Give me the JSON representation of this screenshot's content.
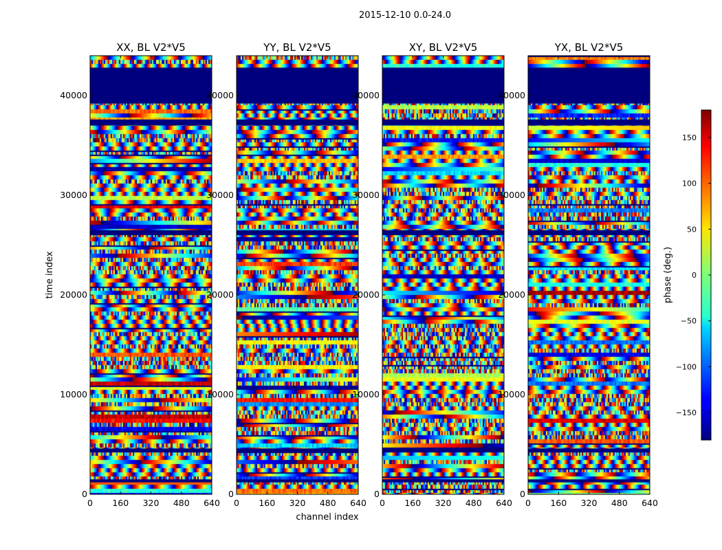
{
  "chart_data": {
    "type": "heatmap",
    "suptitle": "2015-12-10 0.0-24.0",
    "xlabel": "channel index",
    "ylabel": "time index",
    "xlim": [
      0,
      640
    ],
    "ylim": [
      0,
      44000
    ],
    "x_ticks": [
      0,
      160,
      320,
      480,
      640
    ],
    "y_ticks": [
      0,
      10000,
      20000,
      30000,
      40000
    ],
    "x_tick_labels": [
      "0",
      "160",
      "320",
      "480",
      "640"
    ],
    "y_tick_labels": [
      "0",
      "10000",
      "20000",
      "30000",
      "40000"
    ],
    "panels": [
      {
        "title": "XX, BL V2*V5",
        "polarization": "XX"
      },
      {
        "title": "YY, BL V2*V5",
        "polarization": "YY"
      },
      {
        "title": "XY, BL V2*V5",
        "polarization": "XY"
      },
      {
        "title": "YX, BL V2*V5",
        "polarization": "YX"
      }
    ],
    "flagged_time_ranges": [
      [
        39200,
        42800
      ],
      [
        37000,
        37600
      ],
      [
        26000,
        26500
      ],
      [
        4200,
        4600
      ],
      [
        1200,
        1500
      ]
    ],
    "colorbar": {
      "label": "phase (deg.)",
      "range": [
        -180,
        180
      ],
      "ticks": [
        150,
        100,
        50,
        0,
        -50,
        -100,
        -150
      ],
      "tick_labels": [
        "150",
        "100",
        "50",
        "0",
        "−50",
        "−100",
        "−150"
      ],
      "colormap": "jet"
    }
  }
}
